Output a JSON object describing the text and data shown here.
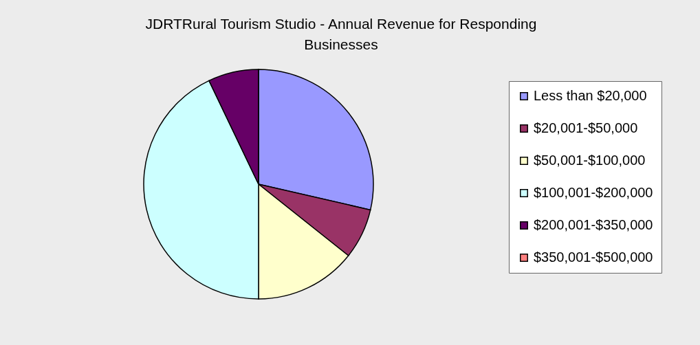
{
  "chart_data": {
    "type": "pie",
    "title": "JDRTRural Tourism Studio - Annual Revenue for Responding Businesses",
    "categories": [
      "Less than $20,000",
      "$20,001-$50,000",
      "$50,001-$100,000",
      "$100,001-$200,000",
      "$200,001-$350,000",
      "$350,001-$500,000"
    ],
    "values": [
      28.6,
      7.1,
      14.3,
      42.9,
      7.1,
      0
    ],
    "colors": [
      "#9999ff",
      "#993366",
      "#ffffcc",
      "#ccffff",
      "#660066",
      "#ff8080"
    ],
    "legend": "right"
  }
}
